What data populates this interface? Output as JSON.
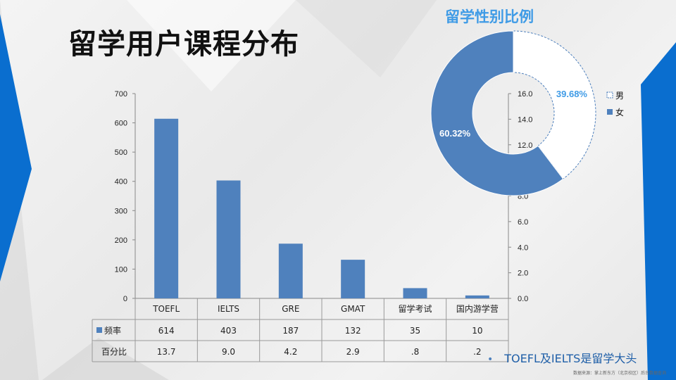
{
  "slide": {
    "title": "留学用户课程分布",
    "bullet": "TOEFL及IELTS是留学大头",
    "source": "数据来源：掌上新东方（北京校区）后台数据查询"
  },
  "colors": {
    "bar": "#4f81bd",
    "donut_male": "#ffffff",
    "donut_female": "#4f81bd",
    "accent_blue": "#0a6ecf",
    "title_blue": "#3f9be6"
  },
  "chart_data": [
    {
      "type": "bar",
      "categories": [
        "TOEFL",
        "IELTS",
        "GRE",
        "GMAT",
        "留学考试",
        "国内游学营"
      ],
      "series": [
        {
          "name": "频率",
          "values": [
            614,
            403,
            187,
            132,
            35,
            10
          ]
        }
      ],
      "table_rows": [
        {
          "label": "频率",
          "values": [
            "614",
            "403",
            "187",
            "132",
            "35",
            "10"
          ]
        },
        {
          "label": "百分比",
          "values": [
            "13.7",
            "9.0",
            "4.2",
            "2.9",
            ".8",
            ".2"
          ]
        }
      ],
      "ylim": [
        0,
        700
      ],
      "yticks": [
        "0",
        "100",
        "200",
        "300",
        "400",
        "500",
        "600",
        "700"
      ],
      "y2lim": [
        0,
        16
      ],
      "y2ticks": [
        "0.0",
        "2.0",
        "4.0",
        "6.0",
        "8.0",
        "10.0",
        "12.0",
        "14.0",
        "16.0"
      ],
      "grid": false
    },
    {
      "type": "pie",
      "title": "留学性别比例",
      "labels": [
        "男",
        "女"
      ],
      "values": [
        39.68,
        60.32
      ],
      "value_labels": [
        "39.68%",
        "60.32%"
      ],
      "legend": "right"
    }
  ]
}
